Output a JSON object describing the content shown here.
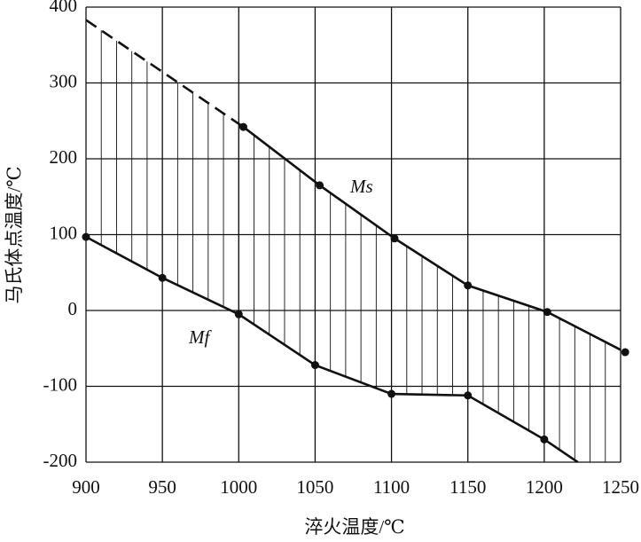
{
  "chart_data": {
    "type": "line",
    "xlabel": "淬火温度/℃",
    "ylabel": "马氏体点温度/℃",
    "xlim": [
      900,
      1250
    ],
    "xticks": [
      900,
      950,
      1000,
      1050,
      1100,
      1150,
      1200,
      1250
    ],
    "ylim": [
      -200,
      400
    ],
    "yticks": [
      -200,
      -100,
      0,
      100,
      200,
      300,
      400
    ],
    "grid": true,
    "hatch_between_series": true,
    "color": "#111111",
    "series": [
      {
        "name": "Ms",
        "x": [
          1003,
          1053,
          1102,
          1150,
          1202,
          1253
        ],
        "values": [
          242,
          165,
          95,
          33,
          -2,
          -55
        ],
        "extrapolation": {
          "style": "dashed",
          "x": [
            900,
            1003
          ],
          "values": [
            383,
            242
          ]
        }
      },
      {
        "name": "Mf",
        "x": [
          900,
          950,
          1000,
          1050,
          1100,
          1150,
          1200
        ],
        "values": [
          97,
          43,
          -5,
          -72,
          -110,
          -112,
          -170
        ],
        "extrapolation": {
          "style": "solid",
          "x": [
            1200,
            1222
          ],
          "values": [
            -170,
            -200
          ]
        }
      }
    ]
  }
}
